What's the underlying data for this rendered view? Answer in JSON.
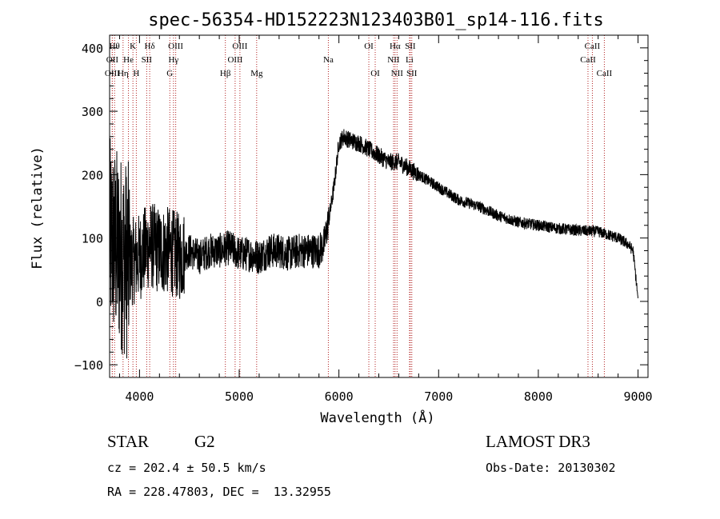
{
  "chart_data": {
    "type": "line",
    "title": "spec-56354-HD152223N123403B01_sp14-116.fits",
    "xlabel": "Wavelength (Å)",
    "ylabel": "Flux (relative)",
    "xlim": [
      3700,
      9100
    ],
    "ylim": [
      -120,
      420
    ],
    "xticks": [
      4000,
      5000,
      6000,
      7000,
      8000,
      9000
    ],
    "yticks": [
      -100,
      0,
      100,
      200,
      300,
      400
    ],
    "grid": false,
    "colors": {
      "spectrum": "#000000",
      "lines": "#b22222",
      "frame": "#000000"
    },
    "series": [
      {
        "x": [
          3700,
          3800,
          3900,
          4000,
          4100,
          4200,
          4300,
          4400,
          4500,
          4600,
          4700,
          4800,
          4900,
          5000,
          5100,
          5200,
          5300,
          5400,
          5500,
          5600,
          5700,
          5800,
          5850,
          5900,
          5950,
          6000,
          6050,
          6100,
          6200,
          6300,
          6400,
          6500,
          6600,
          6700,
          6800,
          6900,
          7000,
          7200,
          7400,
          7600,
          7800,
          8000,
          8200,
          8400,
          8600,
          8800,
          8900,
          8950,
          9000
        ],
        "y": [
          100,
          80,
          60,
          70,
          90,
          80,
          80,
          70,
          80,
          70,
          80,
          80,
          85,
          75,
          75,
          70,
          80,
          80,
          75,
          80,
          80,
          80,
          90,
          130,
          180,
          250,
          260,
          255,
          250,
          240,
          230,
          220,
          220,
          210,
          200,
          190,
          180,
          160,
          150,
          135,
          125,
          120,
          115,
          112,
          110,
          100,
          90,
          80,
          5
        ]
      }
    ],
    "lines": [
      {
        "label": "OII",
        "wl": 3727,
        "row": 1
      },
      {
        "label": "OIII",
        "wl": 3727,
        "row": 2
      },
      {
        "label": "Hθ",
        "wl": 3750,
        "row": 0
      },
      {
        "label": "Hη",
        "wl": 3835,
        "row": 2
      },
      {
        "label": "He",
        "wl": 3889,
        "row": 1
      },
      {
        "label": "K",
        "wl": 3934,
        "row": 0
      },
      {
        "label": "H",
        "wl": 3968,
        "row": 2
      },
      {
        "label": "SII",
        "wl": 4072,
        "row": 1
      },
      {
        "label": "Hδ",
        "wl": 4102,
        "row": 0
      },
      {
        "label": "G",
        "wl": 4304,
        "row": 2
      },
      {
        "label": "OIII",
        "wl": 4363,
        "row": 0
      },
      {
        "label": "Hγ",
        "wl": 4341,
        "row": 1
      },
      {
        "label": "Hβ",
        "wl": 4861,
        "row": 2
      },
      {
        "label": "OIII",
        "wl": 4959,
        "row": 1
      },
      {
        "label": "OIII",
        "wl": 5007,
        "row": 0
      },
      {
        "label": "Mg",
        "wl": 5175,
        "row": 2
      },
      {
        "label": "Na",
        "wl": 5894,
        "row": 1
      },
      {
        "label": "OI",
        "wl": 6300,
        "row": 0
      },
      {
        "label": "OI",
        "wl": 6364,
        "row": 2
      },
      {
        "label": "Hα",
        "wl": 6563,
        "row": 0
      },
      {
        "label": "NII",
        "wl": 6548,
        "row": 1
      },
      {
        "label": "NII",
        "wl": 6583,
        "row": 2
      },
      {
        "label": "Li",
        "wl": 6708,
        "row": 1
      },
      {
        "label": "SII",
        "wl": 6716,
        "row": 0
      },
      {
        "label": "SII",
        "wl": 6731,
        "row": 2
      },
      {
        "label": "CaII",
        "wl": 8498,
        "row": 1
      },
      {
        "label": "CaII",
        "wl": 8542,
        "row": 0
      },
      {
        "label": "CaII",
        "wl": 8662,
        "row": 2
      }
    ]
  },
  "info": {
    "class_label": "STAR",
    "subclass": "G2",
    "survey": "LAMOST DR3",
    "redshift": "cz = 202.4 ± 50.5 km/s",
    "obs_date": "Obs-Date: 20130302",
    "coords": "RA = 228.47803, DEC =  13.32955"
  }
}
